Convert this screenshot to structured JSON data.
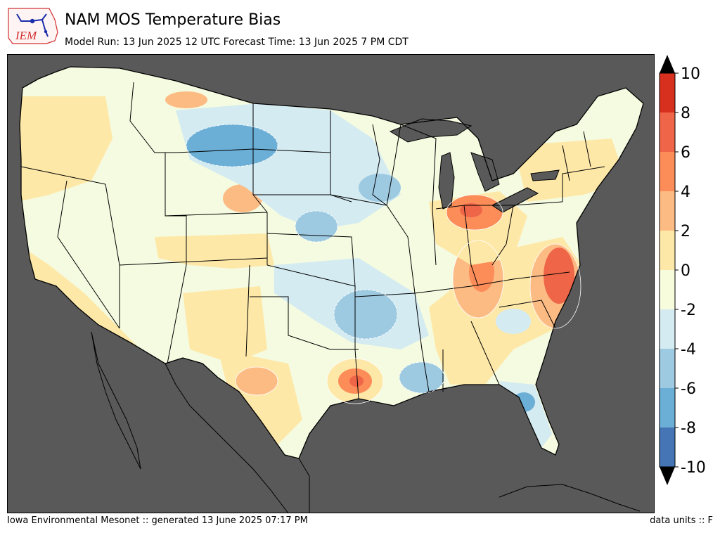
{
  "header": {
    "title": "NAM MOS Temperature Bias",
    "subtitle": "Model Run: 13 Jun 2025 12 UTC Forecast Time: 13 Jun 2025 7 PM CDT",
    "logo_text": "IEM"
  },
  "colorbar": {
    "labels": [
      "10",
      "8",
      "6",
      "4",
      "2",
      "0",
      "-2",
      "-4",
      "-6",
      "-8",
      "-10"
    ],
    "colors": [
      "#d7301f",
      "#ef6548",
      "#fc8d59",
      "#fdbb84",
      "#fee8a8",
      "#f7fcdc",
      "#d4ebf2",
      "#9ecae1",
      "#6baed6",
      "#4575b4"
    ]
  },
  "footer": {
    "left": "Iowa Environmental Mesonet :: generated 13 June 2025 07:17 PM",
    "right": "data units :: F"
  },
  "colors": {
    "ocean": "#595959",
    "land_base": "#f4fbe0"
  }
}
